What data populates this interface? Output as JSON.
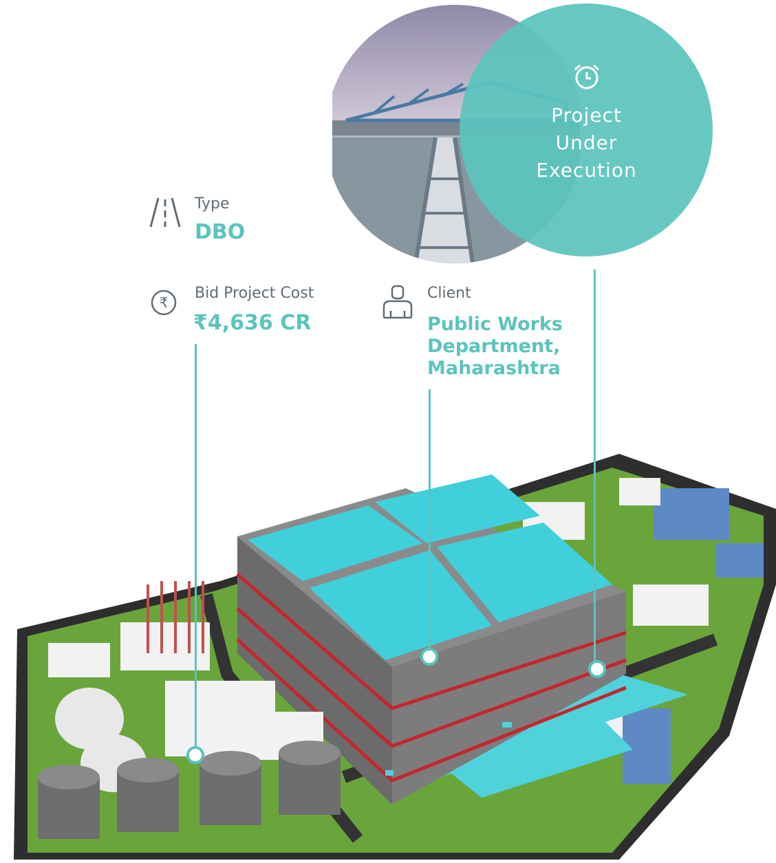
{
  "status": {
    "text_line1": "Project",
    "text_line2": "Under",
    "text_line3": "Execution",
    "icon": "alarm-clock-icon",
    "color": "#5bc4bd"
  },
  "info": {
    "type": {
      "label": "Type",
      "value": "DBO",
      "icon": "road-icon"
    },
    "cost": {
      "label": "Bid Project Cost",
      "value": "₹4,636 CR",
      "icon": "rupee-icon"
    },
    "client": {
      "label": "Client",
      "value_line1": "Public Works",
      "value_line2": "Department,",
      "value_line3": "Maharashtra",
      "icon": "person-icon"
    }
  },
  "colors": {
    "accent": "#5bc4bd",
    "label": "#5f6b76",
    "water": "#3fd0dc",
    "grass": "#6aa53b",
    "concrete": "#7b7b7b"
  }
}
